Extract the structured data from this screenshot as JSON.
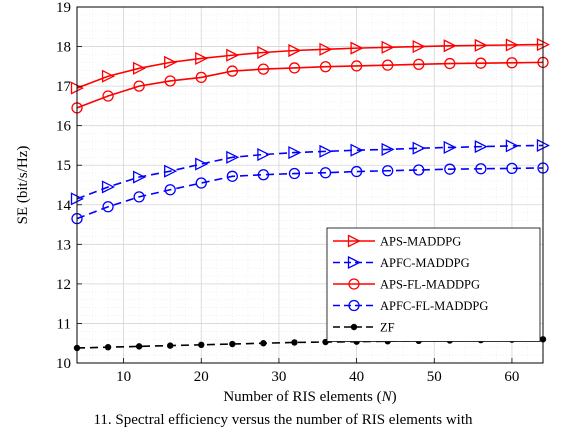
{
  "chart_data": {
    "type": "line",
    "xlabel_main": "Number of RIS elements (",
    "xlabel_var": "N",
    "xlabel_end": ")",
    "ylabel": "SE (bit/s/Hz)",
    "xlim": [
      4,
      64
    ],
    "ylim": [
      10,
      19
    ],
    "xticks": [
      10,
      20,
      30,
      40,
      50,
      60
    ],
    "yticks": [
      10,
      11,
      12,
      13,
      14,
      15,
      16,
      17,
      18,
      19
    ],
    "grid": true,
    "minor_grid": true,
    "legend_position": "lower-right",
    "x": [
      4,
      8,
      12,
      16,
      20,
      24,
      28,
      32,
      36,
      40,
      44,
      48,
      52,
      56,
      60,
      64
    ],
    "series": [
      {
        "name": "APS-MADDPG",
        "color": "#ff0000",
        "marker": "triangle-right",
        "dash": "solid",
        "values": [
          16.95,
          17.25,
          17.45,
          17.6,
          17.7,
          17.78,
          17.85,
          17.9,
          17.93,
          17.96,
          17.98,
          18.0,
          18.02,
          18.03,
          18.04,
          18.05
        ]
      },
      {
        "name": "APFC-MADDPG",
        "color": "#0000ff",
        "marker": "triangle-right",
        "dash": "dashed",
        "values": [
          14.15,
          14.45,
          14.7,
          14.85,
          15.03,
          15.2,
          15.27,
          15.32,
          15.35,
          15.38,
          15.4,
          15.43,
          15.45,
          15.47,
          15.49,
          15.5
        ]
      },
      {
        "name": "APS-FL-MADDPG",
        "color": "#ff0000",
        "marker": "circle",
        "dash": "solid",
        "values": [
          16.45,
          16.75,
          17.0,
          17.13,
          17.22,
          17.38,
          17.43,
          17.46,
          17.49,
          17.51,
          17.53,
          17.55,
          17.57,
          17.58,
          17.59,
          17.6
        ]
      },
      {
        "name": "APFC-FL-MADDPG",
        "color": "#0000ff",
        "marker": "circle",
        "dash": "dashed",
        "values": [
          13.65,
          13.95,
          14.2,
          14.38,
          14.55,
          14.72,
          14.76,
          14.79,
          14.81,
          14.84,
          14.86,
          14.88,
          14.9,
          14.91,
          14.92,
          14.93
        ]
      },
      {
        "name": "ZF",
        "color": "#000000",
        "marker": "dot",
        "dash": "dashed",
        "values": [
          10.38,
          10.4,
          10.42,
          10.44,
          10.46,
          10.48,
          10.5,
          10.52,
          10.53,
          10.54,
          10.55,
          10.56,
          10.57,
          10.58,
          10.59,
          10.6
        ]
      }
    ]
  },
  "caption": "11.  Spectral efficiency versus the number of RIS elements with"
}
